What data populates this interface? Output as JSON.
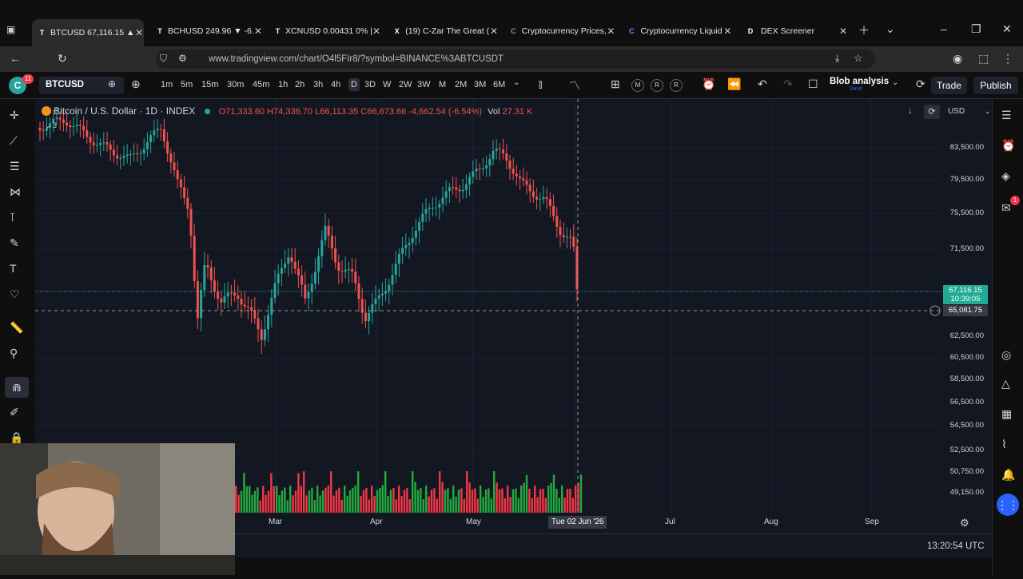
{
  "browser": {
    "tabs": [
      {
        "title": "BTCUSD 67,116.15 ▲ ",
        "fav": "T",
        "active": true
      },
      {
        "title": "BCHUSD 249.96 ▼ -6.",
        "fav": "T"
      },
      {
        "title": "XCNUSD 0.00431 0% |",
        "fav": "T"
      },
      {
        "title": "(19) C-Zar The Great (",
        "fav": "X"
      },
      {
        "title": "Cryptocurrency Prices,",
        "fav": "C"
      },
      {
        "title": "Cryptocurrency Liquid",
        "fav": "C"
      },
      {
        "title": "DEX Screener",
        "fav": "D"
      }
    ],
    "url": "www.tradingview.com/chart/O4l5FIr8/?symbol=BINANCE%3ABTCUSDT"
  },
  "toolbar": {
    "avatar": "C",
    "badge": "11",
    "symbol": "BTCUSD",
    "intervals": [
      "1m",
      "5m",
      "15m",
      "30m",
      "45m",
      "1h",
      "2h",
      "3h",
      "4h",
      "D",
      "3D",
      "W",
      "2W",
      "3W",
      "M",
      "2M",
      "3M",
      "6M"
    ],
    "selected_interval": "D",
    "flags": [
      "M",
      "R",
      "R"
    ],
    "layout_name": "Blob analysis",
    "layout_sub": "Save",
    "trade": "Trade",
    "publish": "Publish"
  },
  "legend": {
    "name": "Bitcoin / U.S. Dollar · 1D · INDEX",
    "o": "O71,333.60",
    "h": "H74,336.70",
    "l": "L66,113.35",
    "c": "C66,673.66",
    "chg": "-4,662.54 (-6.54%)",
    "vol_label": "Vol",
    "vol": "27.31 K",
    "collapsed": "3"
  },
  "price_scale": {
    "currency": "USD",
    "ticks": [
      "83,500.00",
      "79,500.00",
      "75,500.00",
      "71,500.00",
      "62,500.00",
      "60,500.00",
      "58,500.00",
      "56,500.00",
      "54,500.00",
      "52,500.00",
      "50,750.00",
      "49,150.00"
    ],
    "last_price": "67,116.15",
    "countdown": "10:39:05",
    "crosshair_price": "65,081.75"
  },
  "time_scale": {
    "labels": [
      "Mar",
      "Apr",
      "May",
      "Jul",
      "Aug",
      "Sep"
    ],
    "crosshair_date": "Tue 02 Jun '26",
    "clock": "13:20:54 UTC"
  },
  "right_badge": "1",
  "colors": {
    "up": "#26a69a",
    "down": "#ef5350",
    "bg": "#131722",
    "vol_up": "#22ab3f",
    "vol_down": "#f23645",
    "accent": "#2962ff"
  }
}
